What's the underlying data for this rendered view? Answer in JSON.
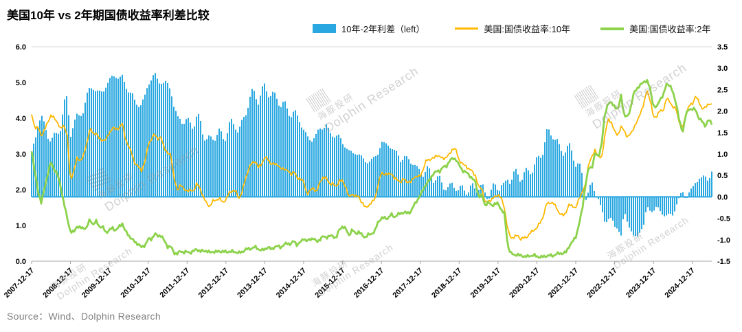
{
  "page": {
    "title": "美国10年 vs 2年期国债收益率利差比较",
    "source": "Source：Wind、Dolphin Research"
  },
  "watermark": {
    "cn": "海豚投研",
    "en": "Dolphin Research"
  },
  "legend": [
    {
      "label": "10年-2年利差（left）",
      "swatch": "area",
      "color": "#29A7E0"
    },
    {
      "label": "美国:国债收益率:10年",
      "swatch": "line",
      "color": "#FFB800"
    },
    {
      "label": "美国:国债收益率:2年",
      "swatch": "line",
      "color": "#8CD24B"
    }
  ],
  "chart_data": {
    "type": "area",
    "title": "美国10年 vs 2年期国债收益率利差比较",
    "xlabel": "",
    "ylabel": "",
    "grid": false,
    "legend_position": "top",
    "x_monthly_start": "2007-12",
    "x_monthly_step": 1,
    "x_tick_labels": [
      "2007-12-17",
      "2008-12-17",
      "2009-12-17",
      "2010-12-17",
      "2011-12-17",
      "2012-12-17",
      "2013-12-17",
      "2014-12-17",
      "2015-12-17",
      "2016-12-17",
      "2017-12-17",
      "2018-12-17",
      "2019-12-17",
      "2020-12-17",
      "2021-12-17",
      "2022-12-17",
      "2023-12-17",
      "2024-12-17"
    ],
    "left_axis": {
      "min": 0,
      "max": 6,
      "tick_labels": [
        "6.0",
        "5.0",
        "4.0",
        "3.0",
        "2.0",
        "1.0",
        "0.0"
      ]
    },
    "right_axis": {
      "min": -1.5,
      "max": 3.5,
      "tick_labels": [
        "3.5",
        "3.0",
        "2.5",
        "2.0",
        "1.5",
        "1.0",
        "0.5",
        "0.0",
        "-0.5",
        "-1.0",
        "-1.5"
      ]
    },
    "series": [
      {
        "id": "spread",
        "name": "10年-2年利差（left）",
        "type": "area_bars",
        "axis": "right",
        "color": "#29A7E0",
        "derived": "us10y_minus_us2y"
      },
      {
        "id": "us10y",
        "name": "美国:国债收益率:10年",
        "type": "line",
        "axis": "left",
        "color": "#FFB800",
        "values": [
          4.1,
          3.74,
          3.74,
          3.51,
          3.68,
          3.88,
          4.1,
          3.99,
          3.89,
          3.69,
          3.81,
          3.53,
          2.25,
          2.52,
          2.87,
          2.82,
          2.93,
          3.29,
          3.72,
          3.56,
          3.59,
          3.4,
          3.39,
          3.4,
          3.59,
          3.73,
          3.69,
          3.73,
          3.85,
          3.42,
          3.2,
          3.01,
          2.7,
          2.65,
          2.54,
          2.76,
          3.29,
          3.39,
          3.58,
          3.41,
          3.46,
          3.17,
          3.0,
          3.0,
          2.3,
          1.98,
          2.15,
          2.01,
          1.98,
          1.97,
          1.97,
          2.17,
          2.05,
          1.8,
          1.62,
          1.53,
          1.68,
          1.72,
          1.75,
          1.65,
          1.72,
          1.91,
          1.98,
          1.96,
          1.76,
          1.93,
          2.3,
          2.58,
          2.74,
          2.81,
          2.62,
          2.72,
          2.9,
          2.86,
          2.71,
          2.72,
          2.71,
          2.56,
          2.6,
          2.54,
          2.42,
          2.53,
          2.3,
          2.33,
          2.21,
          1.88,
          1.98,
          2.04,
          1.94,
          2.2,
          2.36,
          2.32,
          2.17,
          2.17,
          2.07,
          2.26,
          2.24,
          2.09,
          1.78,
          1.89,
          1.81,
          1.81,
          1.64,
          1.5,
          1.56,
          1.63,
          1.76,
          2.14,
          2.49,
          2.43,
          2.42,
          2.48,
          2.3,
          2.3,
          2.19,
          2.32,
          2.21,
          2.2,
          2.36,
          2.35,
          2.4,
          2.58,
          2.86,
          2.84,
          2.87,
          2.98,
          2.91,
          2.89,
          2.89,
          3.0,
          3.15,
          3.12,
          2.83,
          2.71,
          2.68,
          2.57,
          2.53,
          2.4,
          2.07,
          2.06,
          1.63,
          1.7,
          1.71,
          1.81,
          1.86,
          1.76,
          1.5,
          0.87,
          0.66,
          0.67,
          0.73,
          0.62,
          0.65,
          0.68,
          0.79,
          0.87,
          0.93,
          1.08,
          1.26,
          1.61,
          1.64,
          1.62,
          1.52,
          1.32,
          1.28,
          1.37,
          1.58,
          1.56,
          1.47,
          1.76,
          1.93,
          2.13,
          2.75,
          2.9,
          3.14,
          2.9,
          2.9,
          3.52,
          3.98,
          3.89,
          3.62,
          3.53,
          3.75,
          3.66,
          3.46,
          3.57,
          3.75,
          3.9,
          4.17,
          4.38,
          4.8,
          4.5,
          4.02,
          4.06,
          4.21,
          4.21,
          4.54,
          4.48,
          4.31,
          4.25,
          3.87,
          3.72,
          4.1,
          4.36,
          4.39,
          4.63,
          4.45,
          4.28,
          4.28,
          4.42,
          4.38
        ]
      },
      {
        "id": "us2y",
        "name": "美国:国债收益率:2年",
        "type": "line",
        "axis": "left",
        "color": "#8CD24B",
        "values": [
          3.12,
          2.48,
          1.97,
          1.62,
          2.05,
          2.45,
          2.77,
          2.57,
          2.42,
          2.08,
          1.61,
          1.21,
          0.82,
          0.81,
          0.98,
          0.93,
          0.93,
          0.93,
          1.18,
          1.02,
          1.12,
          0.96,
          0.95,
          0.8,
          0.87,
          0.93,
          0.86,
          0.96,
          1.06,
          0.83,
          0.72,
          0.62,
          0.52,
          0.48,
          0.38,
          0.45,
          0.62,
          0.61,
          0.77,
          0.7,
          0.73,
          0.56,
          0.41,
          0.41,
          0.23,
          0.21,
          0.28,
          0.25,
          0.26,
          0.24,
          0.28,
          0.34,
          0.27,
          0.29,
          0.29,
          0.24,
          0.27,
          0.26,
          0.28,
          0.27,
          0.26,
          0.27,
          0.27,
          0.26,
          0.23,
          0.26,
          0.33,
          0.34,
          0.36,
          0.4,
          0.34,
          0.3,
          0.34,
          0.39,
          0.33,
          0.4,
          0.42,
          0.39,
          0.46,
          0.51,
          0.47,
          0.57,
          0.45,
          0.53,
          0.64,
          0.55,
          0.62,
          0.64,
          0.54,
          0.61,
          0.69,
          0.67,
          0.7,
          0.71,
          0.64,
          0.88,
          0.98,
          0.9,
          0.73,
          0.88,
          0.77,
          0.82,
          0.73,
          0.67,
          0.74,
          0.77,
          0.84,
          1.11,
          1.2,
          1.21,
          1.2,
          1.31,
          1.24,
          1.3,
          1.34,
          1.37,
          1.34,
          1.38,
          1.55,
          1.7,
          1.84,
          2.03,
          2.18,
          2.28,
          2.46,
          2.51,
          2.52,
          2.64,
          2.64,
          2.81,
          2.87,
          2.86,
          2.68,
          2.54,
          2.5,
          2.41,
          2.33,
          2.21,
          1.81,
          1.85,
          1.57,
          1.65,
          1.55,
          1.61,
          1.61,
          1.45,
          1.33,
          0.43,
          0.22,
          0.17,
          0.19,
          0.15,
          0.14,
          0.13,
          0.15,
          0.17,
          0.13,
          0.12,
          0.12,
          0.15,
          0.16,
          0.15,
          0.2,
          0.22,
          0.22,
          0.25,
          0.43,
          0.54,
          0.68,
          1.02,
          1.45,
          2.13,
          2.62,
          2.62,
          3.02,
          2.92,
          3.27,
          4.12,
          4.43,
          4.42,
          4.35,
          4.21,
          4.65,
          4.05,
          4.04,
          4.31,
          4.72,
          4.85,
          4.92,
          5.03,
          5.05,
          4.82,
          4.33,
          4.3,
          4.55,
          4.61,
          4.97,
          4.92,
          4.73,
          4.42,
          3.91,
          3.61,
          4.1,
          4.27,
          4.25,
          4.24,
          4.0,
          3.91,
          3.78,
          3.96,
          3.85
        ]
      }
    ]
  }
}
